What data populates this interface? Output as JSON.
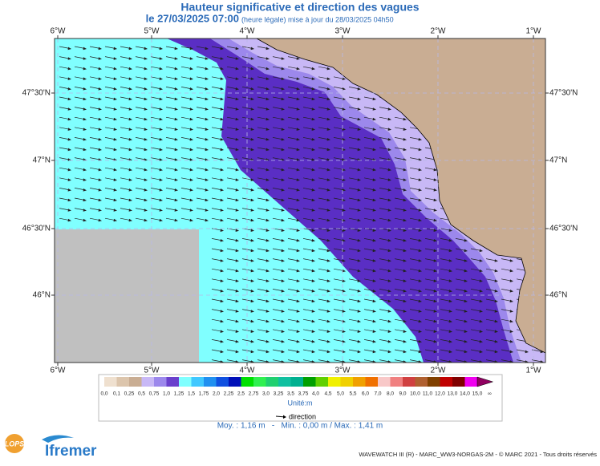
{
  "header": {
    "title": "Hauteur significative et direction des vagues",
    "date": "le 27/03/2025 07:00",
    "note": "(heure légale) mise à jour du 28/03/2025 04h50"
  },
  "axes": {
    "lon": [
      "6°W",
      "5°W",
      "4°W",
      "3°W",
      "2°W",
      "1°W"
    ],
    "lat": [
      "47°30'N",
      "47°N",
      "46°30'N",
      "46°N"
    ]
  },
  "legend": {
    "labels": [
      "0,0",
      "0,1",
      "0,25",
      "0,5",
      "0,75",
      "1,0",
      "1,25",
      "1,5",
      "1,75",
      "2,0",
      "2,25",
      "2,5",
      "2,75",
      "3,0",
      "3,25",
      "3,5",
      "3,75",
      "4,0",
      "4,5",
      "5,0",
      "5,5",
      "6,0",
      "7,0",
      "8,0",
      "9,0",
      "10,0",
      "11,0",
      "12,0",
      "13,0",
      "14,0",
      "15,0",
      "∞"
    ],
    "colors": [
      "#efe0cf",
      "#dcc5ac",
      "#c9ad93",
      "#c8b8f6",
      "#9c88ec",
      "#6a40cc",
      "#80ffff",
      "#40c8ff",
      "#2090f0",
      "#1050e0",
      "#0010b8",
      "#00e000",
      "#30f050",
      "#20d070",
      "#10c0a0",
      "#00b090",
      "#00a000",
      "#60d000",
      "#f0f000",
      "#f0d000",
      "#f0a000",
      "#f07000",
      "#f8c8c8",
      "#f08080",
      "#d04040",
      "#b06030",
      "#804000",
      "#c00000",
      "#800000",
      "#f000f0",
      "#900060"
    ],
    "unit": "Unité:m",
    "direction": "direction"
  },
  "stats": "Moy. : 1,16 m   -   Min. : 0,00 m / Max. : 1,41 m",
  "logos": {
    "lops": "LOPS",
    "ifremer": "Ifremer"
  },
  "footer": "WAVEWATCH III (R) - MARC_WW3-NORGAS-2M - © MARC 2021 - Tous droits réservés"
}
